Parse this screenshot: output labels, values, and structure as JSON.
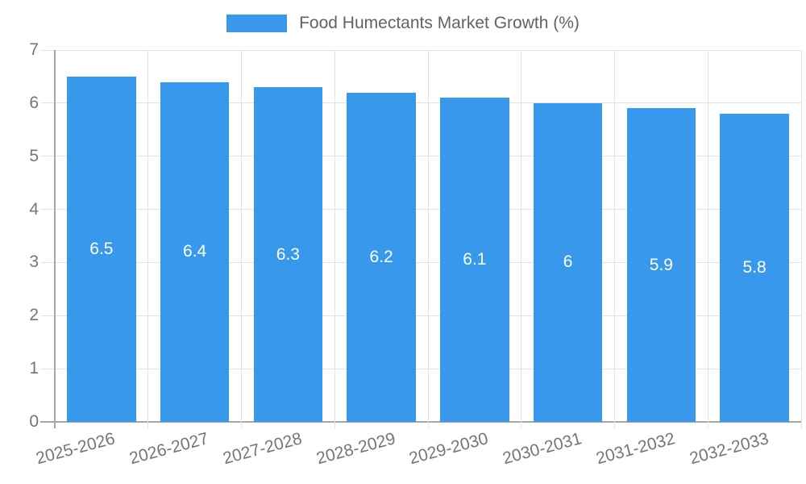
{
  "legend": {
    "label": "Food Humectants Market Growth (%)"
  },
  "colors": {
    "bar": "#3899ec",
    "grid": "#e3e3e3",
    "axis_line": "#a6a6a6",
    "tick_text": "#757575",
    "legend_text": "#5f6368",
    "bar_value_text": "#ffffff",
    "background": "#ffffff"
  },
  "chart_data": {
    "type": "bar",
    "title": "Food Humectants Market Growth (%)",
    "categories": [
      "2025-2026",
      "2026-2027",
      "2027-2028",
      "2028-2029",
      "2029-2030",
      "2030-2031",
      "2031-2032",
      "2032-2033"
    ],
    "values": [
      6.5,
      6.4,
      6.3,
      6.2,
      6.1,
      6,
      5.9,
      5.8
    ],
    "value_labels": [
      "6.5",
      "6.4",
      "6.3",
      "6.2",
      "6.1",
      "6",
      "5.9",
      "5.8"
    ],
    "xlabel": "",
    "ylabel": "",
    "ylim": [
      0,
      7
    ],
    "yticks": [
      0,
      1,
      2,
      3,
      4,
      5,
      6,
      7
    ],
    "grid": true,
    "legend_position": "top",
    "bar_label_position": "middle",
    "x_tick_rotation_deg": -15
  }
}
